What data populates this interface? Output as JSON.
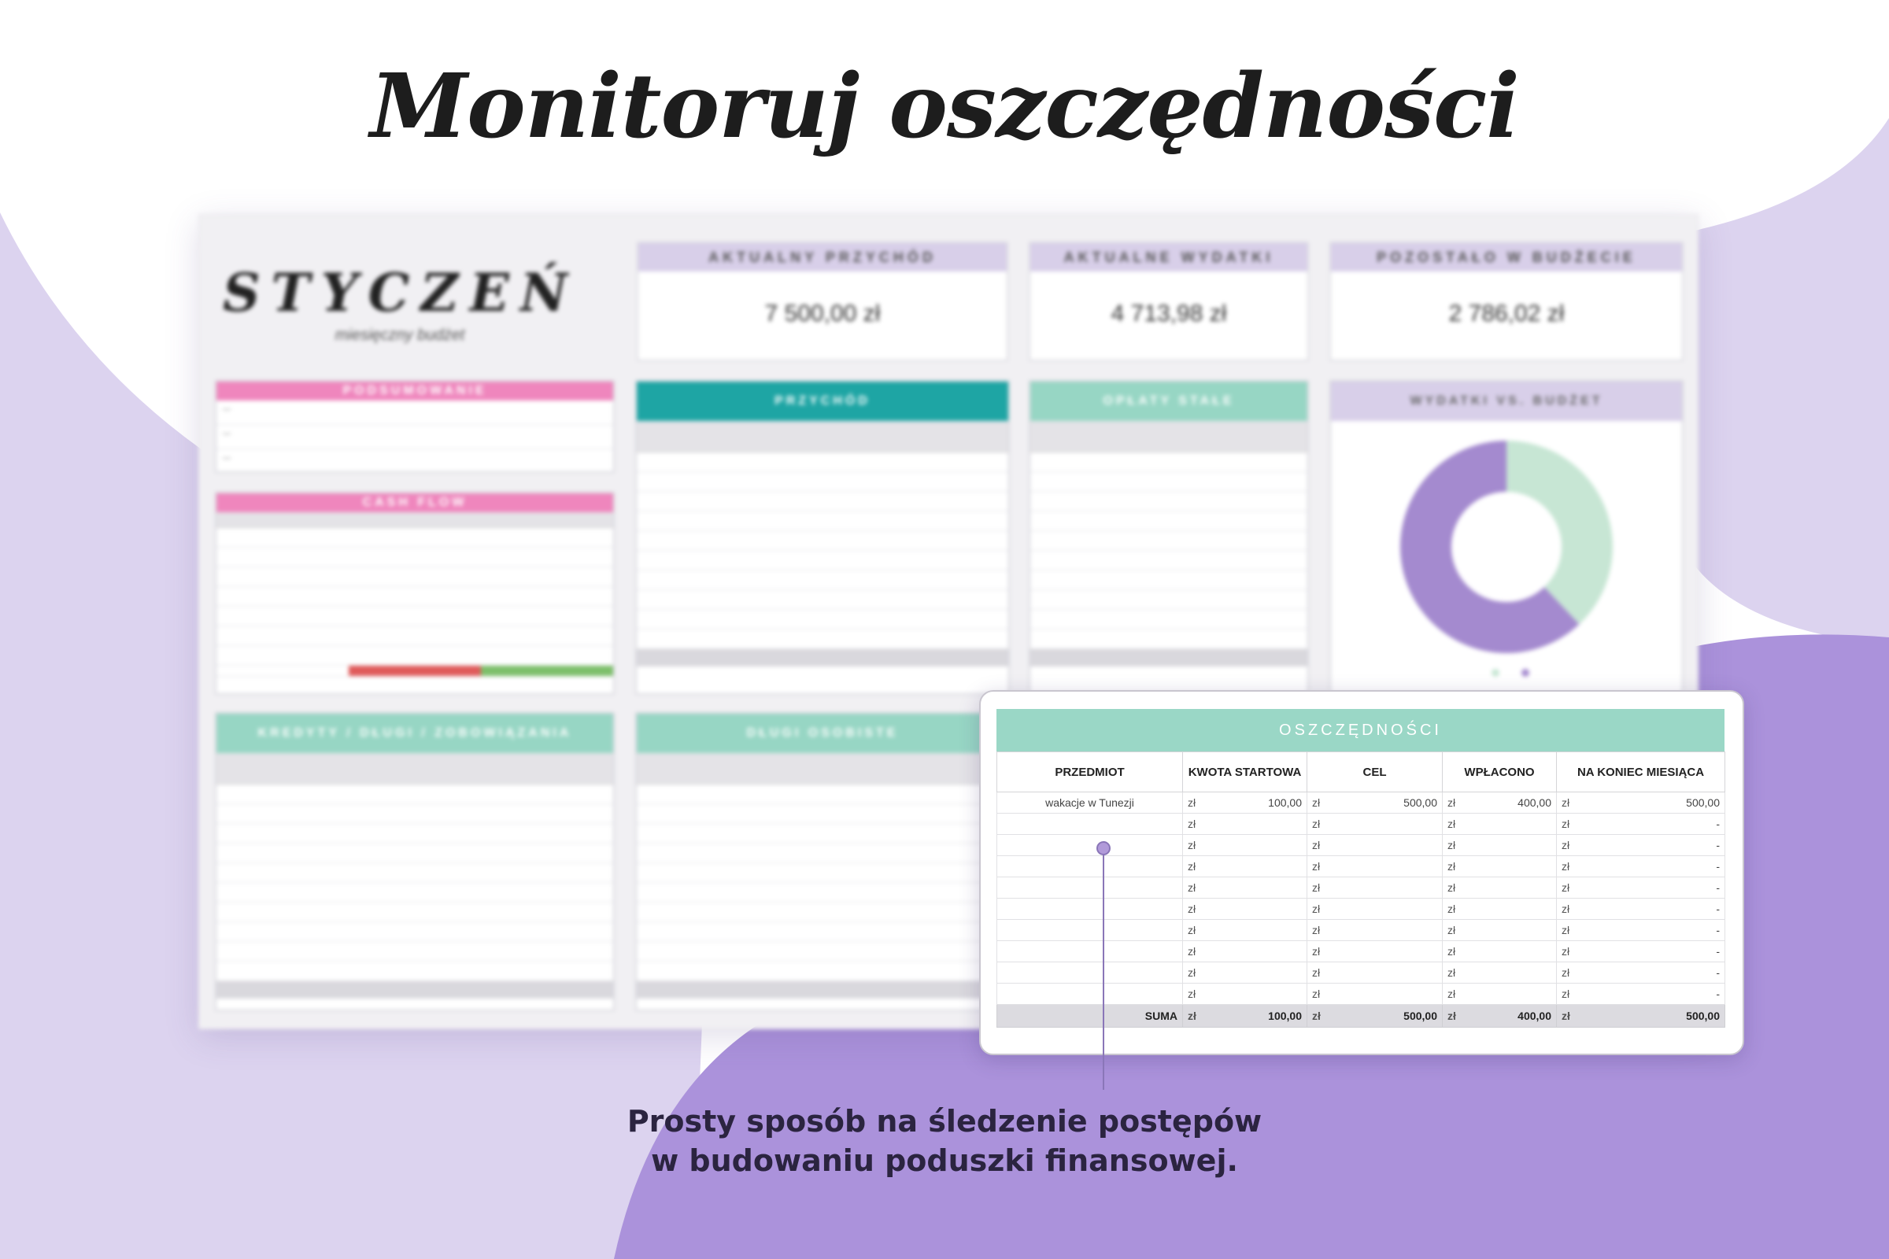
{
  "page": {
    "title": "Monitoruj oszczędności",
    "caption_line1": "Prosty sposób na śledzenie postępów",
    "caption_line2": "w budowaniu poduszki finansowej."
  },
  "colors": {
    "lavender_light": "#dcd3ef",
    "lavender_dark": "#ab92db",
    "mint": "#9ad7c6",
    "teal": "#1ea5a4",
    "pink": "#ef86bd"
  },
  "dashboard": {
    "month": "STYCZEŃ",
    "month_sub": "miesięczny budżet",
    "kpis": [
      {
        "label": "AKTUALNY PRZYCHÓD",
        "value": "7 500,00 zł"
      },
      {
        "label": "AKTUALNE WYDATKI",
        "value": "4 713,98 zł"
      },
      {
        "label": "POZOSTAŁO W BUDŻECIE",
        "value": "2 786,02 zł"
      }
    ],
    "summary_panel": {
      "title": "PODSUMOWANIE"
    },
    "cashflow_panel": {
      "title": "CASH FLOW"
    },
    "income_panel": {
      "title": "PRZYCHÓD"
    },
    "fixed_panel": {
      "title": "OPŁATY STAŁE"
    },
    "donut_panel": {
      "title": "WYDATKI VS. BUDŻET"
    },
    "credits_panel": {
      "title": "KREDYTY / DŁUGI / ZOBOWIĄZANIA"
    },
    "debts_panel": {
      "title": "DŁUGI OSOBISTE"
    },
    "donut": {
      "segments": [
        {
          "name": "mint",
          "value": 0.38,
          "color": "#c7e6d4"
        },
        {
          "name": "lavender",
          "value": 0.62,
          "color": "#a48acf"
        }
      ]
    }
  },
  "savings": {
    "title": "OSZCZĘDNOŚCI",
    "columns": [
      "PRZEDMIOT",
      "KWOTA STARTOWA",
      "CEL",
      "WPŁACONO",
      "NA KONIEC MIESIĄCA"
    ],
    "currency": "zł",
    "rows": [
      {
        "item": "wakacje w Tunezji",
        "start": "100,00",
        "goal": "500,00",
        "paid": "400,00",
        "end": "500,00"
      },
      {
        "item": "",
        "start": "",
        "goal": "",
        "paid": "",
        "end": "-"
      },
      {
        "item": "",
        "start": "",
        "goal": "",
        "paid": "",
        "end": "-"
      },
      {
        "item": "",
        "start": "",
        "goal": "",
        "paid": "",
        "end": "-"
      },
      {
        "item": "",
        "start": "",
        "goal": "",
        "paid": "",
        "end": "-"
      },
      {
        "item": "",
        "start": "",
        "goal": "",
        "paid": "",
        "end": "-"
      },
      {
        "item": "",
        "start": "",
        "goal": "",
        "paid": "",
        "end": "-"
      },
      {
        "item": "",
        "start": "",
        "goal": "",
        "paid": "",
        "end": "-"
      },
      {
        "item": "",
        "start": "",
        "goal": "",
        "paid": "",
        "end": "-"
      },
      {
        "item": "",
        "start": "",
        "goal": "",
        "paid": "",
        "end": "-"
      }
    ],
    "sum": {
      "label": "SUMA",
      "start": "100,00",
      "goal": "500,00",
      "paid": "400,00",
      "end": "500,00"
    }
  }
}
